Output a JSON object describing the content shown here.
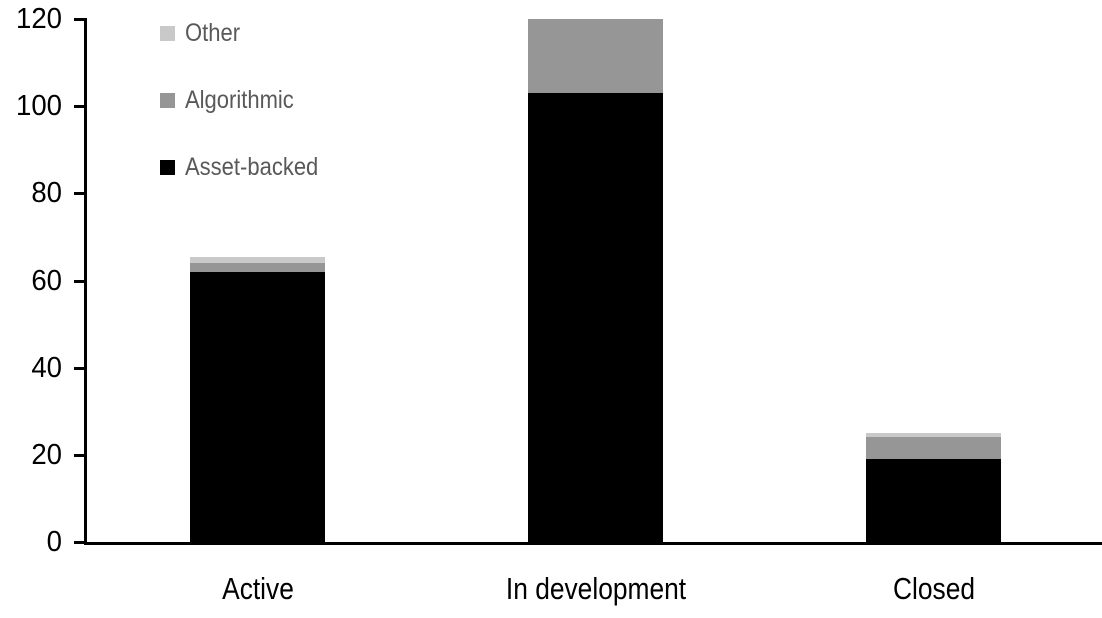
{
  "chart_data": {
    "type": "bar",
    "stacked": true,
    "title": "",
    "categories": [
      "Active",
      "In development",
      "Closed"
    ],
    "series": [
      {
        "name": "Asset-backed",
        "color": "#000000",
        "values": [
          62,
          103,
          19
        ]
      },
      {
        "name": "Algorithmic",
        "color": "#969696",
        "values": [
          2,
          17,
          5
        ]
      },
      {
        "name": "Other",
        "color": "#c9c9c9",
        "values": [
          1.5,
          0,
          1
        ]
      }
    ],
    "legend_order": [
      "Other",
      "Algorithmic",
      "Asset-backed"
    ],
    "legend_position": "top-left",
    "xlabel": "",
    "ylabel": "",
    "ylim": [
      0,
      120
    ],
    "yticks": [
      0,
      20,
      40,
      60,
      80,
      100,
      120
    ],
    "grid": false,
    "colors": {
      "axis": "#000000",
      "tick_label": "#000000",
      "category_label": "#000000",
      "legend_text": "#595959",
      "background": "#ffffff"
    }
  }
}
